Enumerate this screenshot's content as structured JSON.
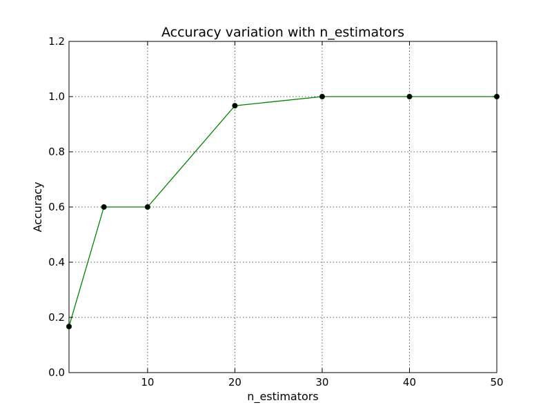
{
  "chart_data": {
    "type": "line",
    "title": "Accuracy variation with n_estimators",
    "xlabel": "n_estimators",
    "ylabel": "Accuracy",
    "xlim": [
      1,
      50
    ],
    "ylim": [
      0.0,
      1.2
    ],
    "x_ticks": [
      10,
      20,
      30,
      40,
      50
    ],
    "x_tick_labels": [
      "10",
      "20",
      "30",
      "40",
      "50"
    ],
    "y_ticks": [
      0.0,
      0.2,
      0.4,
      0.6,
      0.8,
      1.0,
      1.2
    ],
    "y_tick_labels": [
      "0.0",
      "0.2",
      "0.4",
      "0.6",
      "0.8",
      "1.0",
      "1.2"
    ],
    "grid": true,
    "series": [
      {
        "x": [
          1,
          5,
          10,
          20,
          30,
          40,
          50
        ],
        "y": [
          0.167,
          0.6,
          0.6,
          0.967,
          1.0,
          1.0,
          1.0
        ],
        "color": "#008000",
        "marker_color": "#000000"
      }
    ]
  }
}
